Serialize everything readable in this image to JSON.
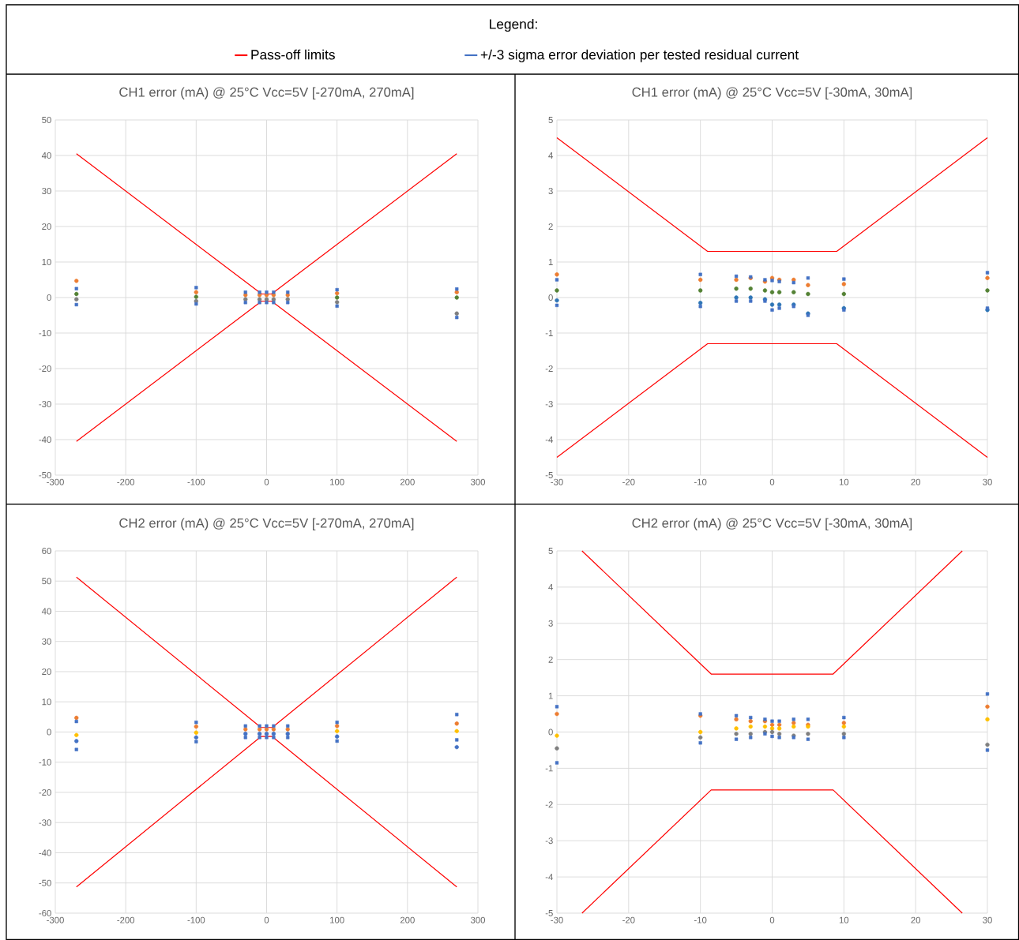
{
  "chart_data": [
    {
      "type": "scatter",
      "title": "CH1 error (mA) @ 25°C Vcc=5V [-270mA, 270mA]",
      "legend": "top",
      "legend_title": "Legend:",
      "grid": true,
      "xlim": [
        -300,
        300
      ],
      "ylim": [
        -50,
        50
      ],
      "xticks": [
        -300,
        -200,
        -100,
        0,
        100,
        200,
        300
      ],
      "yticks": [
        -50,
        -40,
        -30,
        -20,
        -10,
        0,
        10,
        20,
        30,
        40,
        50
      ],
      "x": [
        -270,
        -100,
        -30,
        -10,
        0,
        10,
        30,
        100,
        270
      ],
      "series": [
        {
          "name": "Pass-off limits",
          "type": "line",
          "color": "#ff0000",
          "marker": "none",
          "x": [
            -270,
            -7,
            7,
            270
          ],
          "values": [
            40.5,
            1,
            1,
            40.5
          ]
        },
        {
          "type": "line",
          "color": "#ff0000",
          "marker": "none",
          "x": [
            -270,
            -7,
            7,
            270
          ],
          "values": [
            -40.5,
            -1,
            -1,
            -40.5
          ]
        },
        {
          "marker": "circle",
          "color": "#ed7d31",
          "values": [
            4.7,
            1.5,
            0.7,
            0.7,
            0.7,
            0.7,
            0.7,
            1.2,
            1.5
          ]
        },
        {
          "marker": "circle",
          "color": "#548235",
          "values": [
            1,
            0.2,
            null,
            null,
            null,
            null,
            null,
            0,
            0
          ]
        },
        {
          "marker": "circle",
          "color": "#7f7f7f",
          "values": [
            -0.5,
            -1,
            -0.5,
            -0.5,
            -0.5,
            -0.5,
            -0.5,
            -1.3,
            -4.5
          ]
        },
        {
          "name": "+/-3 sigma error deviation per tested residual current",
          "marker": "square",
          "color": "#4472c4",
          "values": [
            2.5,
            2.8,
            1.5,
            1.5,
            1.5,
            1.5,
            1.5,
            2.2,
            2.4
          ]
        },
        {
          "marker": "square",
          "color": "#4472c4",
          "values": [
            -2,
            -1.8,
            -1.4,
            -1.4,
            -1.4,
            -1.4,
            -1.4,
            -2.4,
            -5.6
          ]
        }
      ]
    },
    {
      "type": "scatter",
      "title": "CH1 error (mA) @ 25°C Vcc=5V [-30mA, 30mA]",
      "grid": true,
      "xlim": [
        -30,
        30
      ],
      "ylim": [
        -5,
        5
      ],
      "xticks": [
        -30,
        -20,
        -10,
        0,
        10,
        20,
        30
      ],
      "yticks": [
        -5,
        -4,
        -3,
        -2,
        -1,
        0,
        1,
        2,
        3,
        4,
        5
      ],
      "x": [
        -30,
        -10,
        -5,
        -3,
        -1,
        0,
        1,
        3,
        5,
        10,
        30
      ],
      "series": [
        {
          "type": "line",
          "color": "#ff0000",
          "marker": "none",
          "x": [
            -30,
            -9,
            9,
            30
          ],
          "values": [
            4.5,
            1.3,
            1.3,
            4.5
          ]
        },
        {
          "type": "line",
          "color": "#ff0000",
          "marker": "none",
          "x": [
            -30,
            -9,
            9,
            30
          ],
          "values": [
            -4.5,
            -1.3,
            -1.3,
            -4.5
          ]
        },
        {
          "marker": "circle",
          "color": "#ed7d31",
          "values": [
            0.65,
            0.5,
            0.5,
            0.55,
            0.45,
            0.55,
            0.5,
            0.5,
            0.35,
            0.38,
            0.55
          ]
        },
        {
          "marker": "circle",
          "color": "#548235",
          "values": [
            0.2,
            0.2,
            0.25,
            0.25,
            0.2,
            0.15,
            0.15,
            0.15,
            0.1,
            0.1,
            0.2
          ]
        },
        {
          "marker": "circle",
          "color": "#2e75b6",
          "values": [
            -0.08,
            -0.15,
            0,
            0,
            -0.05,
            -0.2,
            -0.2,
            -0.2,
            -0.45,
            -0.3,
            -0.35
          ]
        },
        {
          "marker": "square",
          "color": "#4472c4",
          "values": [
            0.5,
            0.65,
            0.6,
            0.58,
            0.5,
            0.48,
            0.45,
            0.42,
            0.55,
            0.52,
            0.7
          ]
        },
        {
          "marker": "square",
          "color": "#4472c4",
          "values": [
            -0.22,
            -0.25,
            -0.1,
            -0.1,
            -0.1,
            -0.35,
            -0.3,
            -0.25,
            -0.5,
            -0.35,
            -0.3
          ]
        }
      ]
    },
    {
      "type": "scatter",
      "title": "CH2 error (mA) @ 25°C Vcc=5V [-270mA, 270mA]",
      "grid": true,
      "xlim": [
        -300,
        300
      ],
      "ylim": [
        -60,
        60
      ],
      "xticks": [
        -300,
        -200,
        -100,
        0,
        100,
        200,
        300
      ],
      "yticks": [
        -60,
        -50,
        -40,
        -30,
        -20,
        -10,
        0,
        10,
        20,
        30,
        40,
        50,
        60
      ],
      "x": [
        -270,
        -100,
        -30,
        -10,
        0,
        10,
        30,
        100,
        270
      ],
      "series": [
        {
          "type": "line",
          "color": "#ff0000",
          "marker": "none",
          "x": [
            -270,
            -8,
            8,
            270
          ],
          "values": [
            51.3,
            1.5,
            1.5,
            51.3
          ]
        },
        {
          "type": "line",
          "color": "#ff0000",
          "marker": "none",
          "x": [
            -270,
            -8,
            8,
            270
          ],
          "values": [
            -51.3,
            -1.5,
            -1.5,
            -51.3
          ]
        },
        {
          "marker": "circle",
          "color": "#ed7d31",
          "values": [
            4.7,
            1.8,
            0.9,
            0.9,
            0.9,
            0.9,
            0.9,
            2,
            2.8
          ]
        },
        {
          "marker": "circle",
          "color": "#ffc000",
          "values": [
            -1,
            -0.2,
            null,
            null,
            null,
            null,
            null,
            0.3,
            0.3
          ]
        },
        {
          "marker": "circle",
          "color": "#4472c4",
          "values": [
            -3,
            -1.8,
            -0.6,
            -0.6,
            -0.6,
            -0.6,
            -0.6,
            -1.5,
            -5
          ]
        },
        {
          "marker": "square",
          "color": "#4472c4",
          "values": [
            3.5,
            3.2,
            2,
            2,
            2,
            2,
            2,
            3.2,
            5.8
          ]
        },
        {
          "marker": "square",
          "color": "#4472c4",
          "values": [
            -5.8,
            -3.2,
            -1.8,
            -1.8,
            -1.8,
            -1.8,
            -1.8,
            -3,
            -2.6
          ]
        }
      ]
    },
    {
      "type": "scatter",
      "title": "CH2 error (mA) @ 25°C Vcc=5V [-30mA, 30mA]",
      "grid": true,
      "xlim": [
        -30,
        30
      ],
      "ylim": [
        -5,
        5
      ],
      "xticks": [
        -30,
        -20,
        -10,
        0,
        10,
        20,
        30
      ],
      "yticks": [
        -5,
        -4,
        -3,
        -2,
        -1,
        0,
        1,
        2,
        3,
        4,
        5
      ],
      "x": [
        -30,
        -10,
        -5,
        -3,
        -1,
        0,
        1,
        3,
        5,
        10,
        30
      ],
      "series": [
        {
          "type": "line",
          "color": "#ff0000",
          "marker": "none",
          "x": [
            -26.5,
            -8.5,
            8.5,
            26.5
          ],
          "values": [
            5,
            1.6,
            1.6,
            5
          ]
        },
        {
          "type": "line",
          "color": "#ff0000",
          "marker": "none",
          "x": [
            -26.5,
            -8.5,
            8.5,
            26.5
          ],
          "values": [
            -5,
            -1.6,
            -1.6,
            -5
          ]
        },
        {
          "marker": "circle",
          "color": "#ed7d31",
          "values": [
            0.5,
            0.45,
            0.35,
            0.3,
            0.3,
            0.2,
            0.2,
            0.25,
            0.2,
            0.25,
            0.7
          ]
        },
        {
          "marker": "circle",
          "color": "#ffc000",
          "values": [
            -0.1,
            0,
            0.1,
            0.15,
            0.15,
            0.1,
            0.1,
            0.15,
            0.15,
            0.15,
            0.35
          ]
        },
        {
          "marker": "circle",
          "color": "#7f7f7f",
          "values": [
            -0.45,
            -0.15,
            -0.05,
            -0.05,
            0,
            0,
            -0.05,
            -0.1,
            -0.05,
            -0.05,
            -0.35
          ]
        },
        {
          "marker": "square",
          "color": "#4472c4",
          "values": [
            0.7,
            0.5,
            0.45,
            0.4,
            0.35,
            0.3,
            0.3,
            0.35,
            0.35,
            0.4,
            1.05
          ]
        },
        {
          "marker": "square",
          "color": "#4472c4",
          "values": [
            -0.85,
            -0.3,
            -0.2,
            -0.15,
            -0.05,
            -0.12,
            -0.15,
            -0.15,
            -0.2,
            -0.15,
            -0.5
          ]
        }
      ]
    }
  ]
}
